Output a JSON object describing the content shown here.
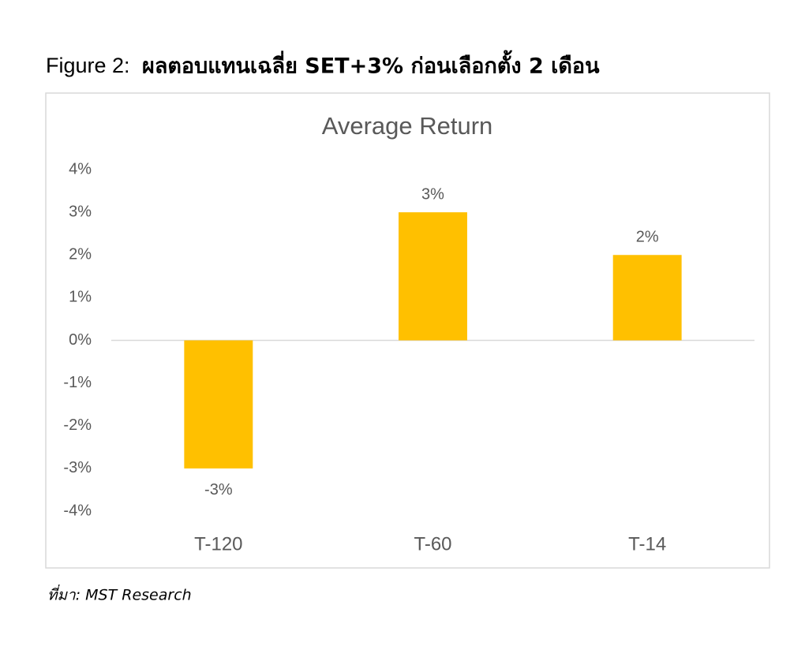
{
  "figure_label": "Figure 2:",
  "caption": "ผลตอบแทนเฉลี่ย SET+3% ก่อนเลือกตั้ง 2 เดือน",
  "chart_data": {
    "type": "bar",
    "title": "Average Return",
    "categories": [
      "T-120",
      "T-60",
      "T-14"
    ],
    "values": [
      -3,
      3,
      2
    ],
    "value_labels": [
      "-3%",
      "3%",
      "2%"
    ],
    "color": "#ffc000",
    "ylim": [
      -4,
      4
    ],
    "yticks": [
      {
        "value": 4,
        "label": "4%"
      },
      {
        "value": 3,
        "label": "3%"
      },
      {
        "value": 2,
        "label": "2%"
      },
      {
        "value": 1,
        "label": "1%"
      },
      {
        "value": 0,
        "label": "0%"
      },
      {
        "value": -1,
        "label": "-1%"
      },
      {
        "value": -2,
        "label": "-2%"
      },
      {
        "value": -3,
        "label": "-3%"
      },
      {
        "value": -4,
        "label": "-4%"
      }
    ],
    "grid": false
  },
  "source": "ที่มา: MST Research"
}
